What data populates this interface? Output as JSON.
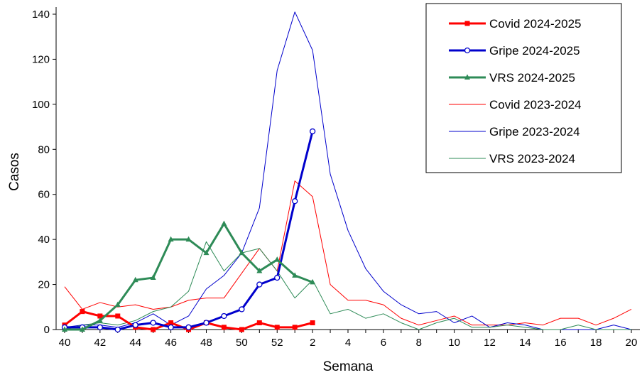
{
  "chart_data": {
    "type": "line",
    "x_label": "Semana",
    "y_label": "Casos",
    "categories": [
      40,
      null,
      42,
      null,
      44,
      null,
      46,
      null,
      48,
      null,
      50,
      null,
      52,
      null,
      2,
      null,
      4,
      null,
      6,
      null,
      8,
      null,
      10,
      null,
      12,
      null,
      14,
      null,
      16,
      null,
      18,
      null,
      20
    ],
    "ylim": [
      0,
      140
    ],
    "yticks": [
      0,
      20,
      40,
      60,
      80,
      100,
      120,
      140
    ],
    "grid": false,
    "legend": "upper right",
    "series": [
      {
        "name": "Covid 2024-2025",
        "color": "#ff0000",
        "width": 3,
        "marker": "square",
        "values": [
          2,
          8,
          6,
          6,
          1,
          0,
          3,
          0,
          3,
          1,
          0,
          3,
          1,
          1,
          3,
          null,
          null,
          null,
          null,
          null,
          null,
          null,
          null,
          null,
          null,
          null,
          null,
          null,
          null,
          null,
          null,
          null,
          null
        ]
      },
      {
        "name": "Gripe 2024-2025",
        "color": "#0000cc",
        "width": 3,
        "marker": "circle",
        "values": [
          1,
          1,
          1,
          0,
          2,
          3,
          1,
          1,
          3,
          6,
          9,
          20,
          23,
          57,
          88,
          null,
          null,
          null,
          null,
          null,
          null,
          null,
          null,
          null,
          null,
          null,
          null,
          null,
          null,
          null,
          null,
          null,
          null
        ]
      },
      {
        "name": "VRS 2024-2025",
        "color": "#2e8b57",
        "width": 3,
        "marker": "triangle",
        "values": [
          0,
          0,
          4,
          11,
          22,
          23,
          40,
          40,
          34,
          47,
          34,
          26,
          31,
          24,
          21,
          null,
          null,
          null,
          null,
          null,
          null,
          null,
          null,
          null,
          null,
          null,
          null,
          null,
          null,
          null,
          null,
          null,
          null
        ]
      },
      {
        "name": "Covid 2023-2024",
        "color": "#ff0000",
        "width": 1,
        "marker": null,
        "values": [
          19,
          9,
          12,
          10,
          11,
          9,
          10,
          13,
          14,
          14,
          25,
          36,
          26,
          66,
          59,
          20,
          13,
          13,
          11,
          5,
          2,
          4,
          6,
          2,
          2,
          2,
          3,
          2,
          5,
          5,
          2,
          5,
          9
        ]
      },
      {
        "name": "Gripe 2023-2024",
        "color": "#0000cc",
        "width": 1,
        "marker": null,
        "values": [
          1,
          2,
          2,
          1,
          3,
          7,
          2,
          6,
          18,
          24,
          34,
          54,
          115,
          141,
          124,
          69,
          44,
          27,
          17,
          11,
          7,
          8,
          3,
          6,
          1,
          3,
          2,
          0,
          0,
          0,
          0,
          2,
          0
        ]
      },
      {
        "name": "VRS 2023-2024",
        "color": "#2e8b57",
        "width": 1,
        "marker": null,
        "values": [
          0,
          2,
          3,
          2,
          4,
          8,
          10,
          17,
          39,
          26,
          34,
          36,
          26,
          14,
          22,
          7,
          9,
          5,
          7,
          3,
          0,
          3,
          5,
          1,
          1,
          2,
          1,
          0,
          0,
          2,
          0,
          0,
          0
        ]
      }
    ]
  }
}
